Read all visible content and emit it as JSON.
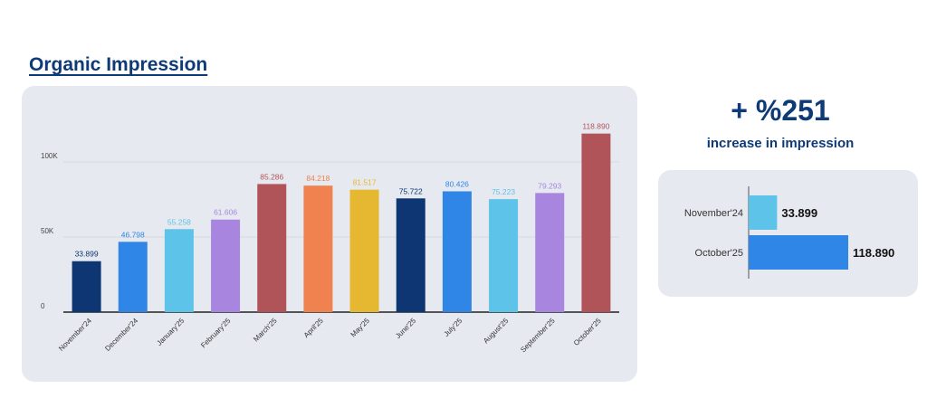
{
  "page_title": "Organic Impression",
  "summary": {
    "headline": "+ %251",
    "subline": "increase in impression"
  },
  "chart_data": [
    {
      "type": "bar",
      "title": "",
      "xlabel": "",
      "ylabel": "",
      "ylim": [
        0,
        125000
      ],
      "yticks": [
        0,
        50000,
        100000
      ],
      "ytick_labels": [
        "0",
        "50K",
        "100K"
      ],
      "grid": true,
      "categories": [
        "November'24",
        "December'24",
        "January'25",
        "February'25",
        "March'25",
        "April'25",
        "May'25",
        "June'25",
        "July'25",
        "August'25",
        "September'25",
        "October'25"
      ],
      "values": [
        33899,
        46798,
        55258,
        61606,
        85286,
        84218,
        81517,
        75722,
        80426,
        75223,
        79293,
        118890
      ],
      "value_labels": [
        "33.899",
        "46.798",
        "55.258",
        "61.606",
        "85.286",
        "84.218",
        "81.517",
        "75.722",
        "80.426",
        "75.223",
        "79.293",
        "118.890"
      ],
      "colors": [
        "#0d3672",
        "#2f86e6",
        "#5ec3e8",
        "#a886e0",
        "#b1545a",
        "#ef824e",
        "#e6b831",
        "#0d3672",
        "#2f86e6",
        "#5ec3e8",
        "#a886e0",
        "#b1545a"
      ]
    },
    {
      "type": "bar",
      "orientation": "horizontal",
      "title": "",
      "categories": [
        "November'24",
        "October'25"
      ],
      "values": [
        33899,
        118890
      ],
      "value_labels": [
        "33.899",
        "118.890"
      ],
      "colors": [
        "#5ec3e8",
        "#2f86e6"
      ]
    }
  ]
}
